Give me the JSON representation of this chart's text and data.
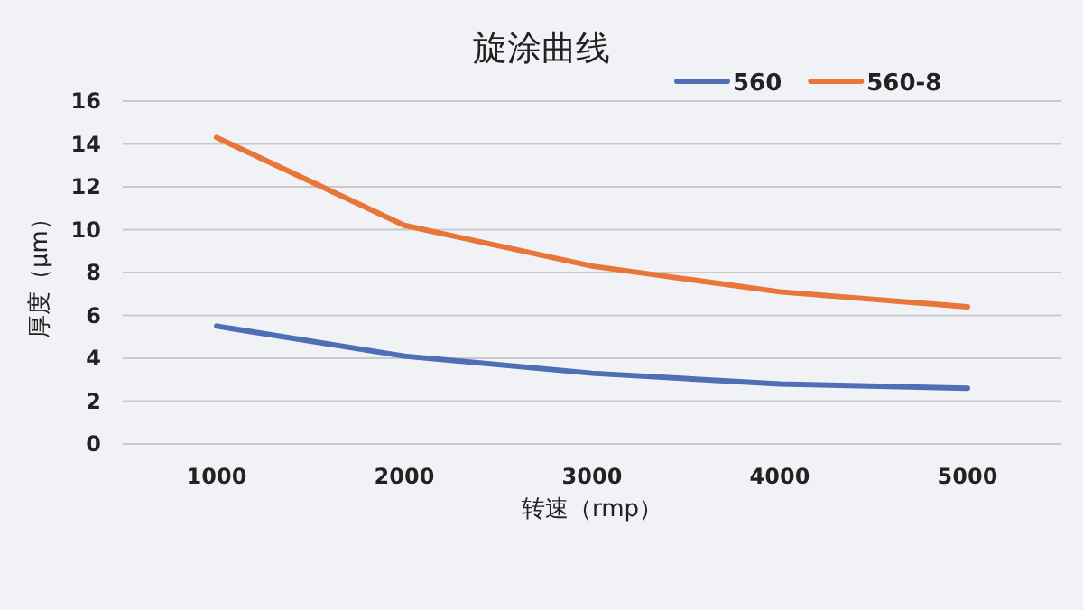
{
  "chart_data": {
    "type": "line",
    "title": "旋涂曲线",
    "xlabel": "转速（rmp）",
    "ylabel": "厚度（μm）",
    "categories": [
      "1000",
      "2000",
      "3000",
      "4000",
      "5000"
    ],
    "series": [
      {
        "name": "560",
        "color": "#4e6fb5",
        "values": [
          5.5,
          4.1,
          3.3,
          2.8,
          2.6
        ]
      },
      {
        "name": "560-8",
        "color": "#e8763a",
        "values": [
          14.3,
          10.2,
          8.3,
          7.1,
          6.4
        ]
      }
    ],
    "ylim": [
      0,
      16
    ],
    "yticks": [
      0,
      2,
      4,
      6,
      8,
      10,
      12,
      14,
      16
    ],
    "grid": "y",
    "legend": "top right",
    "marker": "none",
    "line_style": "solid"
  }
}
